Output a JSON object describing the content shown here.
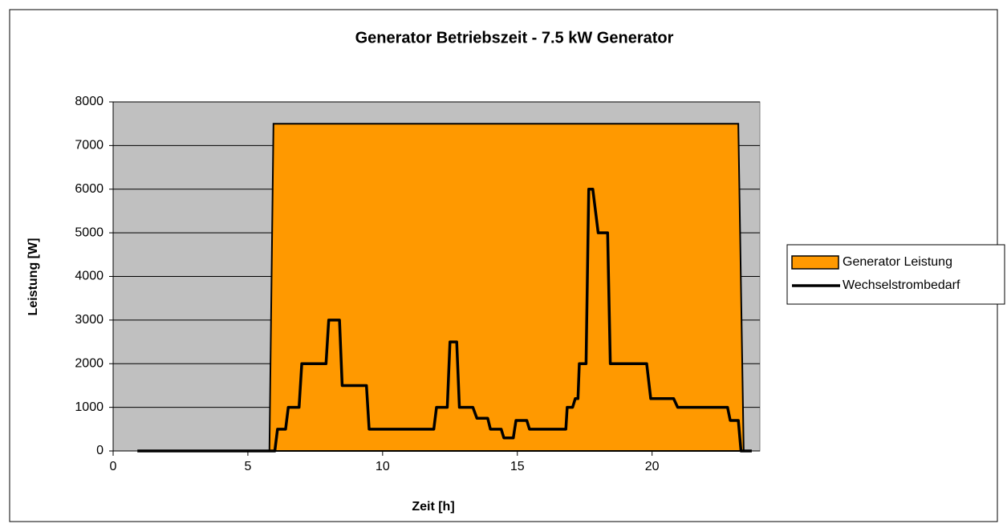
{
  "chart_data": {
    "type": "line",
    "title": "Generator Betriebszeit - 7.5 kW Generator",
    "x_label": "Zeit [h]",
    "y_label": "Leistung [W]",
    "xlim": [
      0,
      24
    ],
    "ylim": [
      0,
      8000
    ],
    "xticks": [
      0,
      5,
      10,
      15,
      20
    ],
    "yticks": [
      0,
      1000,
      2000,
      3000,
      4000,
      5000,
      6000,
      7000,
      8000
    ],
    "grid": true,
    "legend": "right",
    "series": [
      {
        "name": "Generator Leistung",
        "type": "area",
        "color": "#ff9900",
        "x": [
          5.8,
          5.95,
          23.2,
          23.4
        ],
        "values": [
          0,
          7500,
          7500,
          0
        ]
      },
      {
        "name": "Wechselstrombedarf",
        "type": "line",
        "color": "#000000",
        "x": [
          0.9,
          6.0,
          6.1,
          6.4,
          6.5,
          6.9,
          7.0,
          7.9,
          8.0,
          8.4,
          8.5,
          9.4,
          9.5,
          11.9,
          12.0,
          12.4,
          12.5,
          12.75,
          12.85,
          13.35,
          13.5,
          13.9,
          14.0,
          14.4,
          14.5,
          14.85,
          14.95,
          15.35,
          15.45,
          16.8,
          16.85,
          17.05,
          17.15,
          17.25,
          17.3,
          17.55,
          17.65,
          17.8,
          18.0,
          18.35,
          18.45,
          19.8,
          19.95,
          20.8,
          20.95,
          22.8,
          22.9,
          23.2,
          23.3,
          23.7
        ],
        "values": [
          0,
          0,
          500,
          500,
          1000,
          1000,
          2000,
          2000,
          3000,
          3000,
          1500,
          1500,
          500,
          500,
          1000,
          1000,
          2500,
          2500,
          1000,
          1000,
          750,
          750,
          500,
          500,
          300,
          300,
          700,
          700,
          500,
          500,
          1000,
          1000,
          1200,
          1200,
          2000,
          2000,
          6000,
          6000,
          5000,
          5000,
          2000,
          2000,
          1200,
          1200,
          1000,
          1000,
          700,
          700,
          0,
          0
        ]
      }
    ]
  }
}
